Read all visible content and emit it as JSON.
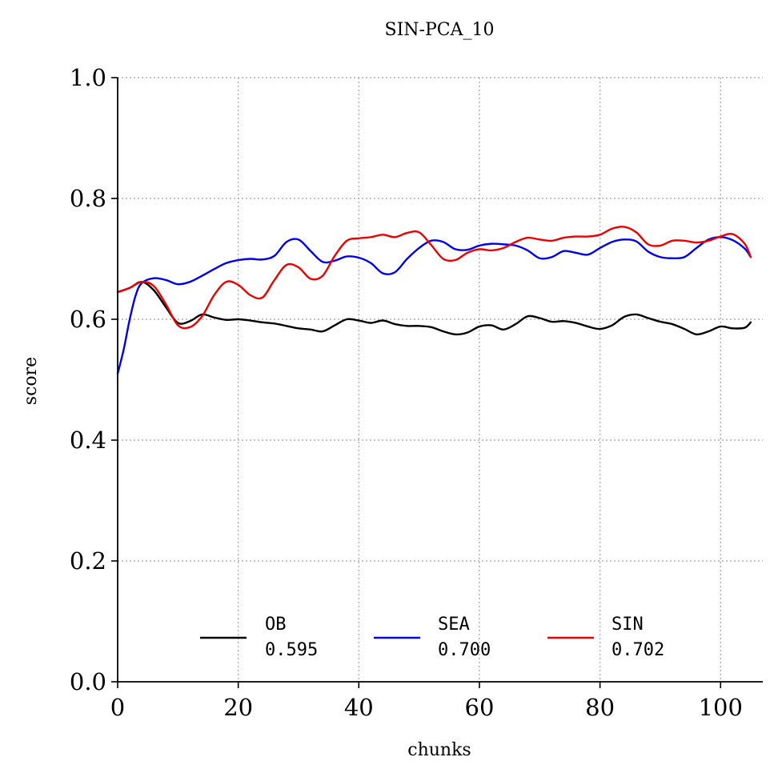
{
  "chart_data": {
    "type": "line",
    "title": "SIN-PCA_10",
    "xlabel": "chunks",
    "ylabel": "score",
    "xlim": [
      0,
      107
    ],
    "ylim": [
      0.0,
      1.0
    ],
    "xticks": [
      "0",
      "20",
      "40",
      "60",
      "80",
      "100"
    ],
    "yticks": [
      "0.0",
      "0.2",
      "0.4",
      "0.6",
      "0.8",
      "1.0"
    ],
    "grid": true,
    "legend_position": "bottom-center",
    "series": [
      {
        "name": "OB",
        "legend_value": "0.595",
        "color": "#000000",
        "points": [
          [
            0,
            0.645
          ],
          [
            2,
            0.652
          ],
          [
            4,
            0.662
          ],
          [
            6,
            0.648
          ],
          [
            8,
            0.62
          ],
          [
            10,
            0.594
          ],
          [
            12,
            0.597
          ],
          [
            14,
            0.608
          ],
          [
            16,
            0.603
          ],
          [
            18,
            0.599
          ],
          [
            20,
            0.6
          ],
          [
            22,
            0.598
          ],
          [
            24,
            0.595
          ],
          [
            26,
            0.593
          ],
          [
            28,
            0.589
          ],
          [
            30,
            0.585
          ],
          [
            32,
            0.583
          ],
          [
            34,
            0.58
          ],
          [
            36,
            0.59
          ],
          [
            38,
            0.6
          ],
          [
            40,
            0.598
          ],
          [
            42,
            0.594
          ],
          [
            44,
            0.598
          ],
          [
            46,
            0.592
          ],
          [
            48,
            0.589
          ],
          [
            50,
            0.589
          ],
          [
            52,
            0.587
          ],
          [
            54,
            0.58
          ],
          [
            56,
            0.575
          ],
          [
            58,
            0.578
          ],
          [
            60,
            0.588
          ],
          [
            62,
            0.59
          ],
          [
            64,
            0.583
          ],
          [
            66,
            0.592
          ],
          [
            68,
            0.605
          ],
          [
            70,
            0.602
          ],
          [
            72,
            0.596
          ],
          [
            74,
            0.597
          ],
          [
            76,
            0.594
          ],
          [
            78,
            0.588
          ],
          [
            80,
            0.584
          ],
          [
            82,
            0.59
          ],
          [
            84,
            0.604
          ],
          [
            86,
            0.608
          ],
          [
            88,
            0.602
          ],
          [
            90,
            0.596
          ],
          [
            92,
            0.592
          ],
          [
            94,
            0.584
          ],
          [
            96,
            0.575
          ],
          [
            98,
            0.58
          ],
          [
            100,
            0.588
          ],
          [
            102,
            0.585
          ],
          [
            104,
            0.586
          ],
          [
            105,
            0.595
          ]
        ]
      },
      {
        "name": "SEA",
        "legend_value": "0.700",
        "color": "#0000ee",
        "points": [
          [
            0,
            0.51
          ],
          [
            1,
            0.55
          ],
          [
            2,
            0.6
          ],
          [
            3,
            0.64
          ],
          [
            4,
            0.66
          ],
          [
            6,
            0.668
          ],
          [
            8,
            0.665
          ],
          [
            10,
            0.658
          ],
          [
            12,
            0.662
          ],
          [
            14,
            0.672
          ],
          [
            16,
            0.683
          ],
          [
            18,
            0.693
          ],
          [
            20,
            0.698
          ],
          [
            22,
            0.7
          ],
          [
            24,
            0.699
          ],
          [
            26,
            0.705
          ],
          [
            28,
            0.728
          ],
          [
            30,
            0.732
          ],
          [
            32,
            0.713
          ],
          [
            34,
            0.695
          ],
          [
            36,
            0.697
          ],
          [
            38,
            0.704
          ],
          [
            40,
            0.702
          ],
          [
            42,
            0.693
          ],
          [
            44,
            0.676
          ],
          [
            46,
            0.678
          ],
          [
            48,
            0.7
          ],
          [
            50,
            0.718
          ],
          [
            52,
            0.73
          ],
          [
            54,
            0.728
          ],
          [
            56,
            0.716
          ],
          [
            58,
            0.715
          ],
          [
            60,
            0.722
          ],
          [
            62,
            0.725
          ],
          [
            64,
            0.724
          ],
          [
            66,
            0.722
          ],
          [
            68,
            0.714
          ],
          [
            70,
            0.701
          ],
          [
            72,
            0.703
          ],
          [
            74,
            0.713
          ],
          [
            76,
            0.71
          ],
          [
            78,
            0.707
          ],
          [
            80,
            0.718
          ],
          [
            82,
            0.728
          ],
          [
            84,
            0.732
          ],
          [
            86,
            0.729
          ],
          [
            88,
            0.712
          ],
          [
            90,
            0.703
          ],
          [
            92,
            0.701
          ],
          [
            94,
            0.703
          ],
          [
            96,
            0.718
          ],
          [
            98,
            0.732
          ],
          [
            100,
            0.736
          ],
          [
            102,
            0.731
          ],
          [
            104,
            0.717
          ],
          [
            105,
            0.703
          ]
        ]
      },
      {
        "name": "SIN",
        "legend_value": "0.702",
        "color": "#ee0000",
        "points": [
          [
            0,
            0.645
          ],
          [
            2,
            0.652
          ],
          [
            4,
            0.662
          ],
          [
            6,
            0.655
          ],
          [
            8,
            0.625
          ],
          [
            10,
            0.59
          ],
          [
            12,
            0.587
          ],
          [
            14,
            0.605
          ],
          [
            16,
            0.64
          ],
          [
            18,
            0.662
          ],
          [
            20,
            0.657
          ],
          [
            22,
            0.64
          ],
          [
            24,
            0.636
          ],
          [
            26,
            0.665
          ],
          [
            28,
            0.69
          ],
          [
            30,
            0.686
          ],
          [
            32,
            0.667
          ],
          [
            34,
            0.672
          ],
          [
            36,
            0.705
          ],
          [
            38,
            0.73
          ],
          [
            40,
            0.734
          ],
          [
            42,
            0.736
          ],
          [
            44,
            0.74
          ],
          [
            46,
            0.736
          ],
          [
            48,
            0.743
          ],
          [
            50,
            0.744
          ],
          [
            52,
            0.723
          ],
          [
            54,
            0.7
          ],
          [
            56,
            0.698
          ],
          [
            58,
            0.71
          ],
          [
            60,
            0.716
          ],
          [
            62,
            0.714
          ],
          [
            64,
            0.718
          ],
          [
            66,
            0.728
          ],
          [
            68,
            0.735
          ],
          [
            70,
            0.732
          ],
          [
            72,
            0.73
          ],
          [
            74,
            0.735
          ],
          [
            76,
            0.737
          ],
          [
            78,
            0.737
          ],
          [
            80,
            0.74
          ],
          [
            82,
            0.75
          ],
          [
            84,
            0.753
          ],
          [
            86,
            0.744
          ],
          [
            88,
            0.724
          ],
          [
            90,
            0.722
          ],
          [
            92,
            0.73
          ],
          [
            94,
            0.73
          ],
          [
            96,
            0.727
          ],
          [
            98,
            0.73
          ],
          [
            100,
            0.737
          ],
          [
            102,
            0.741
          ],
          [
            104,
            0.725
          ],
          [
            105,
            0.703
          ]
        ]
      }
    ]
  }
}
